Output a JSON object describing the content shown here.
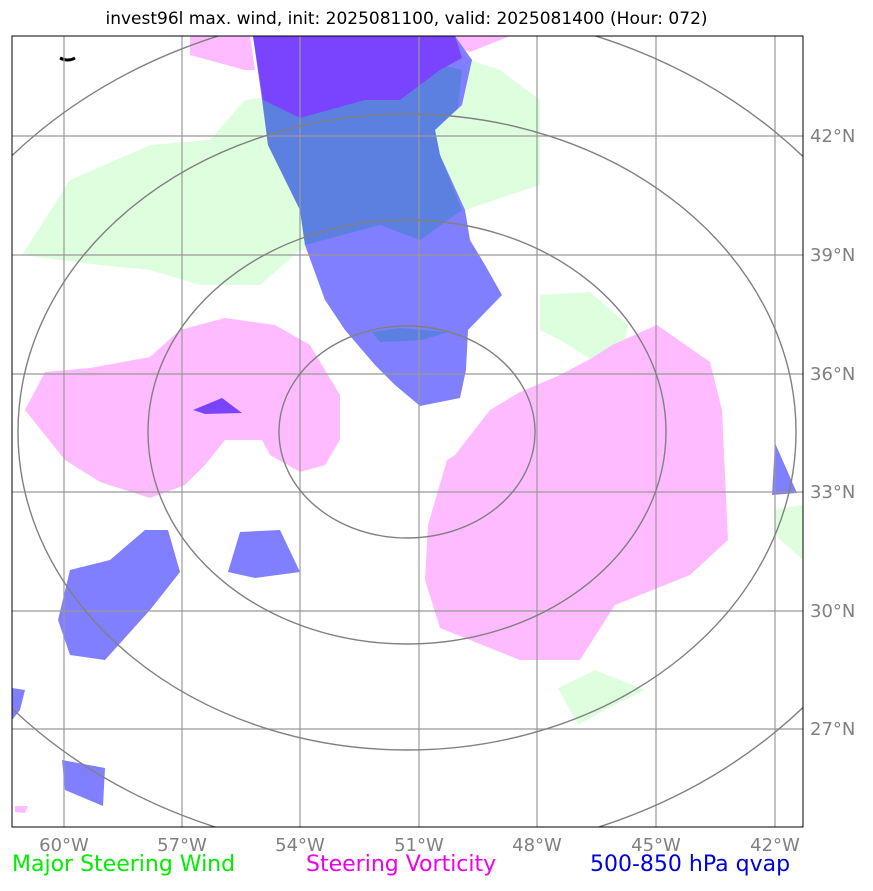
{
  "title": "invest96l max. wind, init: 2025081100, valid: 2025081400 (Hour: 072)",
  "legend": [
    {
      "label": "Major Steering Wind",
      "color": "#00ee00"
    },
    {
      "label": "Steering Vorticity",
      "color": "#ee00ee"
    },
    {
      "label": "500-850 hPa qvap",
      "color": "#0000dd"
    }
  ],
  "map": {
    "lon_ticks": [
      "60°W",
      "57°W",
      "54°W",
      "51°W",
      "48°W",
      "45°W",
      "42°W"
    ],
    "lat_ticks": [
      "42°N",
      "39°N",
      "36°N",
      "33°N",
      "30°N",
      "27°N"
    ],
    "lon_range": [
      -61.3,
      -41.3
    ],
    "lat_range": [
      24.9,
      44.9
    ],
    "colors": {
      "wind_fill": "#ddffdd",
      "vorticity_fill": "#ffbbff",
      "qvap_fill": "#7f7fff",
      "qvap_overlap": "#5c80e0",
      "qvap_dense": "#7a44ff",
      "grid": "#999999",
      "rings": "#808080"
    }
  }
}
